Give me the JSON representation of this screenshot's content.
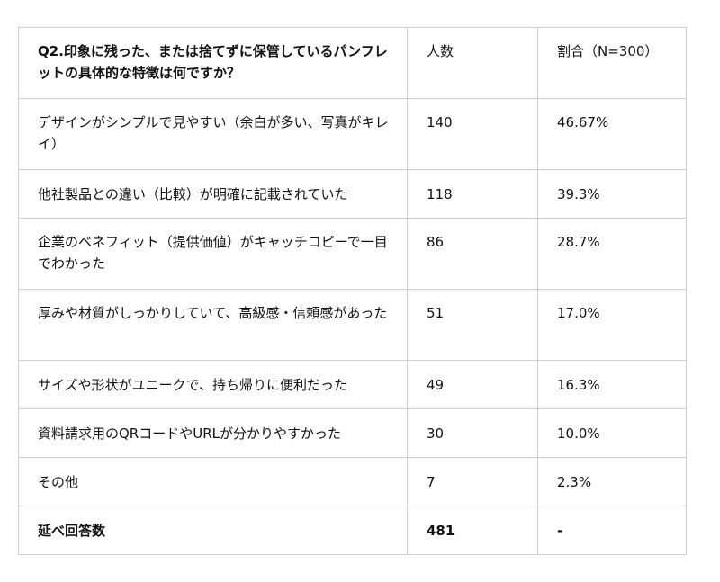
{
  "table": {
    "header": {
      "question": "Q2.印象に残った、または捨てずに保管しているパンフレットの具体的な特徴は何ですか？",
      "count_label": "人数",
      "ratio_label": "割合（N=300）"
    },
    "rows": [
      {
        "feature": "デザインがシンプルで見やすい（余白が多い、写真がキレイ）",
        "count": "140",
        "ratio": "46.67%"
      },
      {
        "feature": "他社製品との違い（比較）が明確に記載されていた",
        "count": "118",
        "ratio": "39.3%"
      },
      {
        "feature": "企業のベネフィット（提供価値）がキャッチコピーで一目でわかった",
        "count": "86",
        "ratio": "28.7%"
      },
      {
        "feature": "厚みや材質がしっかりしていて、高級感・信頼感があった",
        "count": "51",
        "ratio": "17.0%"
      },
      {
        "feature": "サイズや形状がユニークで、持ち帰りに便利だった",
        "count": "49",
        "ratio": "16.3%"
      },
      {
        "feature": "資料請求用のQRコードやURLが分かりやすかった",
        "count": "30",
        "ratio": "10.0%"
      },
      {
        "feature": "その他",
        "count": "7",
        "ratio": "2.3%"
      }
    ],
    "total": {
      "label": "延べ回答数",
      "count": "481",
      "ratio": "-"
    }
  }
}
